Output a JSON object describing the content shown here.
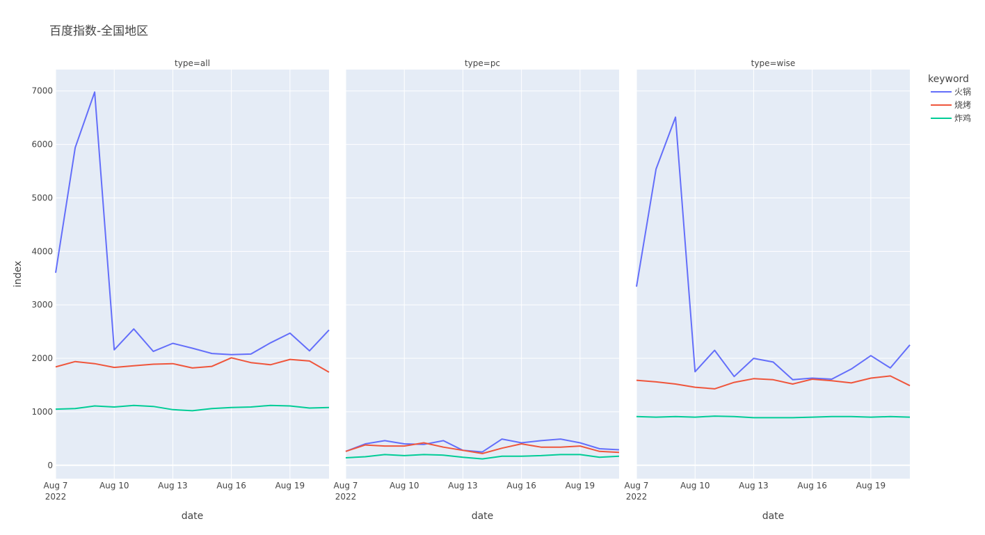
{
  "chart_data": {
    "type": "line",
    "title": "百度指数-全国地区",
    "xlabel": "date",
    "ylabel": "index",
    "ylim": [
      -250,
      7400
    ],
    "y_ticks": [
      0,
      1000,
      2000,
      3000,
      4000,
      5000,
      6000,
      7000
    ],
    "y_tick_labels": [
      "0",
      "1000",
      "2000",
      "3000",
      "4000",
      "5000",
      "6000",
      "7000"
    ],
    "x_ticks": [
      {
        "day": 7,
        "label": "Aug 7",
        "sublabel": "2022"
      },
      {
        "day": 10,
        "label": "Aug 10",
        "sublabel": ""
      },
      {
        "day": 13,
        "label": "Aug 13",
        "sublabel": ""
      },
      {
        "day": 16,
        "label": "Aug 16",
        "sublabel": ""
      },
      {
        "day": 19,
        "label": "Aug 19",
        "sublabel": ""
      }
    ],
    "x": [
      "2022-08-07",
      "2022-08-08",
      "2022-08-09",
      "2022-08-10",
      "2022-08-11",
      "2022-08-12",
      "2022-08-13",
      "2022-08-14",
      "2022-08-15",
      "2022-08-16",
      "2022-08-17",
      "2022-08-18",
      "2022-08-19",
      "2022-08-20",
      "2022-08-21"
    ],
    "xlim": [
      "2022-08-07",
      "2022-08-21"
    ],
    "grid": true,
    "legend": {
      "title": "keyword",
      "position": "top-right",
      "items": [
        {
          "name": "火锅",
          "color": "#636efa"
        },
        {
          "name": "烧烤",
          "color": "#ef553b"
        },
        {
          "name": "炸鸡",
          "color": "#00cc96"
        }
      ]
    },
    "facets": [
      {
        "title": "type=all",
        "series": [
          {
            "name": "火锅",
            "values": [
              3600,
              5940,
              6980,
              2160,
              2550,
              2130,
              2280,
              2190,
              2090,
              2070,
              2080,
              2290,
              2470,
              2140,
              2530
            ]
          },
          {
            "name": "烧烤",
            "values": [
              1840,
              1940,
              1900,
              1830,
              1860,
              1890,
              1900,
              1820,
              1850,
              2010,
              1920,
              1880,
              1980,
              1950,
              1740
            ]
          },
          {
            "name": "炸鸡",
            "values": [
              1050,
              1060,
              1110,
              1090,
              1120,
              1100,
              1040,
              1020,
              1060,
              1080,
              1090,
              1120,
              1110,
              1070,
              1080
            ]
          }
        ]
      },
      {
        "title": "type=pc",
        "series": [
          {
            "name": "火锅",
            "values": [
              260,
              400,
              460,
              400,
              390,
              460,
              280,
              250,
              490,
              420,
              460,
              490,
              420,
              310,
              290
            ]
          },
          {
            "name": "烧烤",
            "values": [
              260,
              380,
              360,
              360,
              420,
              340,
              280,
              220,
              320,
              400,
              340,
              340,
              360,
              260,
              240
            ]
          },
          {
            "name": "炸鸡",
            "values": [
              140,
              160,
              200,
              180,
              200,
              190,
              150,
              120,
              170,
              170,
              180,
              200,
              200,
              150,
              170
            ]
          }
        ]
      },
      {
        "title": "type=wise",
        "series": [
          {
            "name": "火锅",
            "values": [
              3340,
              5540,
              6510,
              1750,
              2150,
              1660,
              2000,
              1930,
              1600,
              1630,
              1610,
              1800,
              2050,
              1820,
              2250
            ]
          },
          {
            "name": "烧烤",
            "values": [
              1590,
              1560,
              1520,
              1460,
              1430,
              1550,
              1620,
              1600,
              1520,
              1610,
              1580,
              1540,
              1630,
              1670,
              1490
            ]
          },
          {
            "name": "炸鸡",
            "values": [
              910,
              900,
              910,
              900,
              920,
              910,
              890,
              890,
              890,
              900,
              910,
              910,
              900,
              910,
              900
            ]
          }
        ]
      }
    ]
  }
}
